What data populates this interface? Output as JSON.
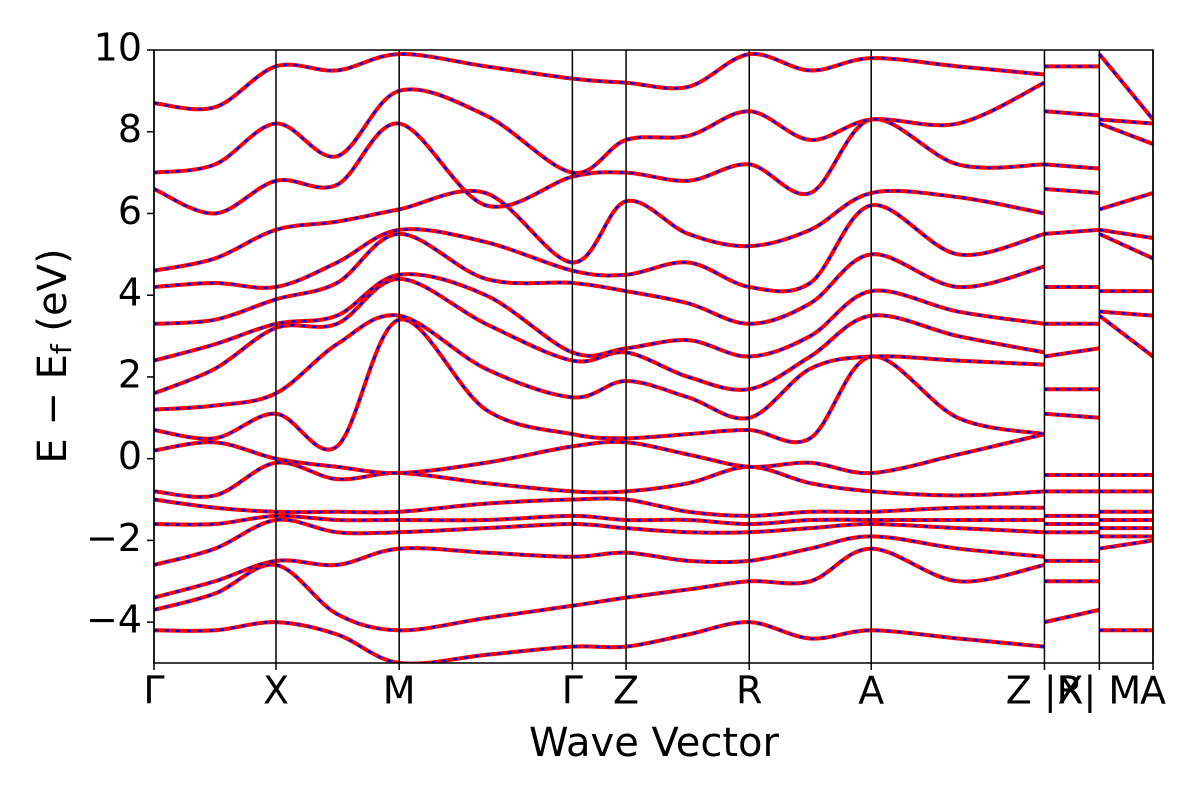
{
  "chart_data": {
    "type": "bands",
    "x_label": "Wave Vector",
    "y_label": "E − E",
    "y_label_sub": "f",
    "y_label_unit": " (eV)",
    "xlim": [
      0,
      8.19
    ],
    "ylim": [
      -5,
      10
    ],
    "xticks": [
      {
        "value": 0,
        "label": "Γ"
      },
      {
        "value": 1.0,
        "label": "X"
      },
      {
        "value": 2.01,
        "label": "M"
      },
      {
        "value": 3.43,
        "label": "Γ"
      },
      {
        "value": 3.87,
        "label": "Z"
      },
      {
        "value": 4.88,
        "label": "R"
      },
      {
        "value": 5.88,
        "label": "A"
      },
      {
        "value": 7.3,
        "label": "Z |R"
      },
      {
        "value": 7.75,
        "label": "X| M"
      },
      {
        "value": 8.19,
        "label": "A"
      }
    ],
    "yticks": [
      {
        "value": -4,
        "label": "−4"
      },
      {
        "value": -2,
        "label": "−2"
      },
      0,
      2,
      4,
      6,
      8,
      10
    ],
    "color": "#ff0000",
    "dash_color": "#0000ff",
    "x": [
      0,
      0.5,
      1.0,
      1.5,
      2.01,
      2.72,
      3.43,
      3.87,
      4.38,
      4.88,
      5.38,
      5.88,
      6.59,
      7.3,
      7.3,
      7.3,
      7.75,
      7.75,
      7.75,
      8.19
    ],
    "series": [
      {
        "values": [
          -4.2,
          -4.2,
          -4.0,
          -4.3,
          -5.0,
          -4.8,
          -4.6,
          -4.6,
          -4.3,
          -4.0,
          -4.4,
          -4.2,
          -4.4,
          -4.6,
          null,
          -4.0,
          -3.7,
          null,
          -4.2,
          -4.2
        ]
      },
      {
        "values": [
          -3.7,
          -3.3,
          -2.6,
          -3.8,
          -4.2,
          -3.9,
          -3.6,
          -3.4,
          -3.2,
          -3.0,
          -3.0,
          -2.2,
          -3.0,
          -2.6,
          null,
          -3.0,
          -3.0,
          null,
          -2.2,
          -2.0
        ]
      },
      {
        "values": [
          -3.4,
          -3.0,
          -2.5,
          -2.6,
          -2.2,
          -2.3,
          -2.4,
          -2.3,
          -2.5,
          -2.5,
          -2.2,
          -1.9,
          -2.2,
          -2.4,
          null,
          -2.5,
          -2.5,
          null,
          -1.9,
          -1.9
        ]
      },
      {
        "values": [
          -2.6,
          -2.2,
          -1.5,
          -1.8,
          -1.8,
          -1.7,
          -1.6,
          -1.7,
          -1.8,
          -1.8,
          -1.7,
          -1.6,
          -1.7,
          -1.8,
          null,
          -1.8,
          -1.8,
          null,
          -1.7,
          -1.7
        ]
      },
      {
        "values": [
          -1.6,
          -1.6,
          -1.4,
          -1.5,
          -1.5,
          -1.5,
          -1.4,
          -1.5,
          -1.5,
          -1.6,
          -1.5,
          -1.5,
          -1.5,
          -1.5,
          null,
          -1.6,
          -1.6,
          null,
          -1.5,
          -1.5
        ]
      },
      {
        "values": [
          -1.0,
          -1.2,
          -1.3,
          -1.3,
          -1.3,
          -1.1,
          -1.0,
          -1.0,
          -1.3,
          -1.4,
          -1.3,
          -1.3,
          -1.2,
          -1.2,
          null,
          -1.4,
          -1.4,
          null,
          -1.3,
          -1.3
        ]
      },
      {
        "values": [
          -0.8,
          -0.9,
          -0.1,
          -0.5,
          -0.35,
          -0.6,
          -0.8,
          -0.8,
          -0.6,
          -0.2,
          -0.6,
          -0.8,
          -0.9,
          -0.8,
          null,
          -0.8,
          -0.8,
          null,
          -0.8,
          -0.8
        ]
      },
      {
        "values": [
          0.2,
          0.4,
          0,
          -0.2,
          -0.35,
          -0.1,
          0.3,
          0.4,
          0.1,
          -0.2,
          -0.1,
          -0.35,
          0.1,
          0.6,
          null,
          -0.4,
          -0.4,
          null,
          -0.4,
          -0.4
        ]
      },
      {
        "values": [
          0.7,
          0.5,
          1.1,
          0.3,
          3.4,
          1.2,
          0.6,
          0.5,
          0.6,
          0.7,
          0.5,
          2.5,
          1.0,
          0.6,
          null,
          1.1,
          1.0,
          null,
          3.5,
          2.5
        ]
      },
      {
        "values": [
          1.2,
          1.3,
          1.6,
          2.8,
          3.5,
          2.2,
          1.5,
          1.9,
          1.5,
          1.0,
          2.2,
          2.5,
          2.4,
          2.3,
          null,
          1.7,
          1.7,
          null,
          3.6,
          3.5
        ]
      },
      {
        "values": [
          1.6,
          2.2,
          3.2,
          3.3,
          4.4,
          3.3,
          2.4,
          2.6,
          2.0,
          1.7,
          2.5,
          3.5,
          3.0,
          2.6,
          null,
          2.5,
          2.7,
          null,
          4.1,
          4.1
        ]
      },
      {
        "values": [
          2.4,
          2.8,
          3.3,
          3.5,
          4.5,
          4.0,
          2.6,
          2.7,
          2.9,
          2.5,
          3.0,
          4.1,
          3.6,
          3.3,
          null,
          3.3,
          3.3,
          null,
          5.5,
          4.9
        ]
      },
      {
        "values": [
          3.3,
          3.4,
          3.9,
          4.3,
          5.5,
          4.4,
          4.3,
          4.1,
          3.8,
          3.3,
          3.8,
          5.0,
          4.2,
          4.7,
          null,
          4.2,
          4.2,
          null,
          5.6,
          5.4
        ]
      },
      {
        "values": [
          4.2,
          4.3,
          4.2,
          4.8,
          5.6,
          5.3,
          4.6,
          4.5,
          4.8,
          4.2,
          4.3,
          6.2,
          5.0,
          5.5,
          null,
          5.5,
          5.6,
          null,
          6.1,
          6.5
        ]
      },
      {
        "values": [
          4.6,
          4.9,
          5.6,
          5.8,
          6.1,
          6.5,
          4.8,
          6.3,
          5.5,
          5.2,
          5.6,
          6.5,
          6.4,
          6.0,
          null,
          6.6,
          6.5,
          null,
          8.2,
          7.7
        ]
      },
      {
        "values": [
          6.6,
          6.0,
          6.8,
          6.7,
          8.2,
          6.2,
          6.9,
          7.0,
          6.8,
          7.2,
          6.5,
          8.3,
          7.2,
          7.2,
          null,
          7.2,
          7.1,
          null,
          8.3,
          8.2
        ]
      },
      {
        "values": [
          7.0,
          7.2,
          8.2,
          7.4,
          9.0,
          8.4,
          7.0,
          7.8,
          7.9,
          8.5,
          7.8,
          8.3,
          8.2,
          9.2,
          null,
          8.5,
          8.4,
          null,
          9.9,
          8.3
        ]
      },
      {
        "values": [
          8.7,
          8.6,
          9.6,
          9.5,
          9.9,
          9.6,
          9.3,
          9.2,
          9.1,
          9.9,
          9.5,
          9.8,
          9.6,
          9.4,
          null,
          9.6,
          9.6,
          null,
          null,
          null
        ]
      }
    ]
  }
}
